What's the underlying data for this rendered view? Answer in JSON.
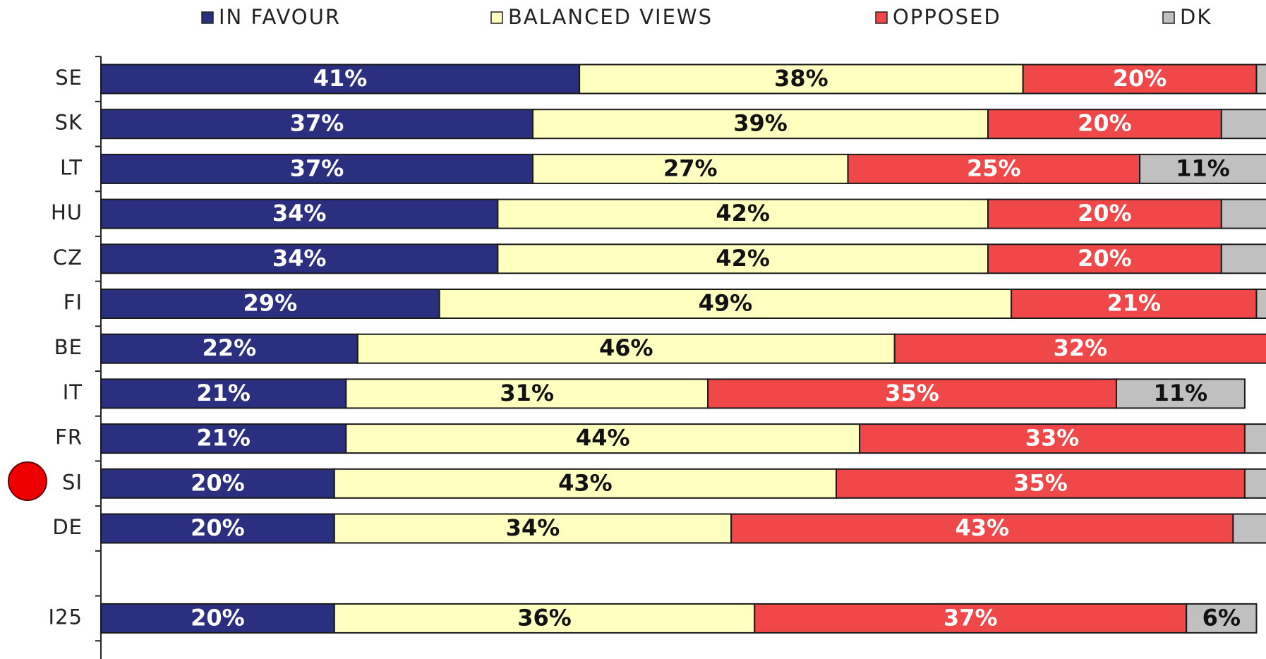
{
  "chart_data": {
    "type": "stacked-barh",
    "categories": [
      "SE",
      "SK",
      "LT",
      "HU",
      "CZ",
      "FI",
      "BE",
      "IT",
      "FR",
      "SI",
      "DE",
      null,
      "I25"
    ],
    "xlim": [
      0,
      100
    ],
    "series": [
      {
        "name": "IN FAVOUR",
        "color": "#2b2f80",
        "text_color": "#ffffff",
        "values": [
          41,
          37,
          37,
          34,
          34,
          29,
          22,
          21,
          21,
          20,
          20,
          null,
          20
        ],
        "value_labels": [
          "41%",
          "37%",
          "37%",
          "34%",
          "34%",
          "29%",
          "22%",
          "21%",
          "21%",
          "20%",
          "20%",
          null,
          "20%"
        ]
      },
      {
        "name": "BALANCED VIEWS",
        "color": "#ffffc0",
        "text_color": "#111111",
        "values": [
          38,
          39,
          27,
          42,
          42,
          49,
          46,
          31,
          44,
          43,
          34,
          null,
          36
        ],
        "value_labels": [
          "38%",
          "39%",
          "27%",
          "42%",
          "42%",
          "49%",
          "46%",
          "31%",
          "44%",
          "43%",
          "34%",
          null,
          "36%"
        ]
      },
      {
        "name": "OPPOSED",
        "color": "#f04848",
        "text_color": "#ffffff",
        "values": [
          20,
          20,
          25,
          20,
          20,
          21,
          32,
          35,
          33,
          35,
          43,
          null,
          37
        ],
        "value_labels": [
          "20%",
          "20%",
          "25%",
          "20%",
          "20%",
          "21%",
          "32%",
          "35%",
          "33%",
          "35%",
          "43%",
          null,
          "37%"
        ]
      },
      {
        "name": "DK",
        "color": "#c0c0c0",
        "text_color": "#111111",
        "values": [
          1,
          4,
          11,
          4,
          4,
          1,
          0,
          11,
          2,
          2,
          3,
          null,
          6
        ],
        "value_labels": [
          null,
          null,
          "11%",
          null,
          null,
          null,
          null,
          "11%",
          null,
          null,
          null,
          null,
          "6%"
        ]
      }
    ]
  }
}
